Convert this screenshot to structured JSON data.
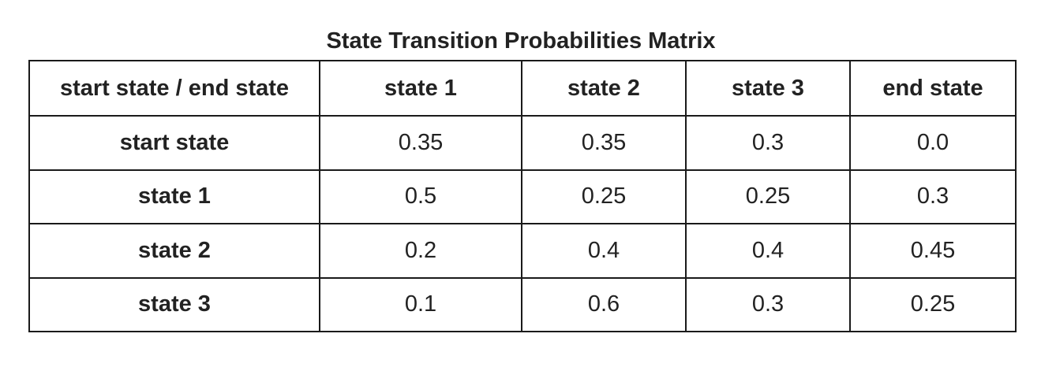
{
  "title": "State Transition Probabilities Matrix",
  "table": {
    "corner": "start state / end state",
    "columns": [
      "state 1",
      "state 2",
      "state 3",
      "end state"
    ],
    "rows": [
      {
        "label": "start state",
        "values": [
          "0.35",
          "0.35",
          "0.3",
          "0.0"
        ]
      },
      {
        "label": "state 1",
        "values": [
          "0.5",
          "0.25",
          "0.25",
          "0.3"
        ]
      },
      {
        "label": "state 2",
        "values": [
          "0.2",
          "0.4",
          "0.4",
          "0.45"
        ]
      },
      {
        "label": "state 3",
        "values": [
          "0.1",
          "0.6",
          "0.3",
          "0.25"
        ]
      }
    ]
  }
}
